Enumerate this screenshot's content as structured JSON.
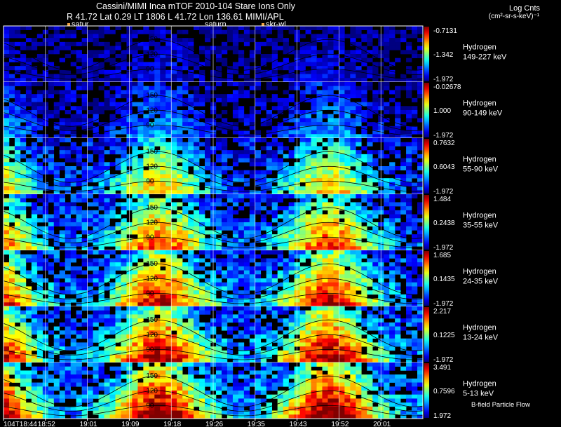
{
  "header": {
    "title": "Cassini/MIMI Inca mTOF  2010-104   Stare    Ions Only",
    "info": "R      41.72 Lat 0.29 LT 1806 L        41.72 Lon        136.61  MIMI/APL",
    "log_label": "Log Cnts",
    "unit_label": "(cm²-sr-s-keV)⁻¹"
  },
  "markers": [
    {
      "label": "satur"
    },
    {
      "label": "saturn"
    },
    {
      "label": "skr-wl"
    }
  ],
  "footer_note": "B-field Particle Flow",
  "colors": {
    "background": "#000000",
    "grid": "#ffffff",
    "contour": "#000000"
  },
  "chart_data": {
    "type": "heatmap",
    "title": "Cassini/MIMI Inca mTOF  2010-104   Stare    Ions Only",
    "time_ticks": [
      "104T18:44",
      "18:52",
      "19:01",
      "19:09",
      "19:18",
      "19:26",
      "19:35",
      "19:43",
      "19:52",
      "20:01"
    ],
    "contour_levels": [
      90,
      120,
      150
    ],
    "panels": [
      {
        "species": "Hydrogen",
        "energy": "149-227 keV",
        "cb_max": "-0.7131",
        "cb_mid": "-1.342",
        "cb_min": "-1.972",
        "intensity": 0.12
      },
      {
        "species": "Hydrogen",
        "energy": "90-149 keV",
        "cb_max": "-0.02678",
        "cb_mid": "1.000",
        "cb_min": "-1.972",
        "intensity": 0.3
      },
      {
        "species": "Hydrogen",
        "energy": "55-90 keV",
        "cb_max": "0.7632",
        "cb_mid": "0.6043",
        "cb_min": "-1.972",
        "intensity": 0.62
      },
      {
        "species": "Hydrogen",
        "energy": "35-55 keV",
        "cb_max": "1.484",
        "cb_mid": "0.2438",
        "cb_min": "-1.972",
        "intensity": 0.72
      },
      {
        "species": "Hydrogen",
        "energy": "24-35 keV",
        "cb_max": "1.685",
        "cb_mid": "0.1435",
        "cb_min": "-1.972",
        "intensity": 0.78
      },
      {
        "species": "Hydrogen",
        "energy": "13-24 keV",
        "cb_max": "2.217",
        "cb_mid": "0.1225",
        "cb_min": "-1.972",
        "intensity": 0.82
      },
      {
        "species": "Hydrogen",
        "energy": "5-13 keV",
        "cb_max": "3.491",
        "cb_mid": "0.7596",
        "cb_min": "1.972",
        "intensity": 0.86
      }
    ]
  }
}
